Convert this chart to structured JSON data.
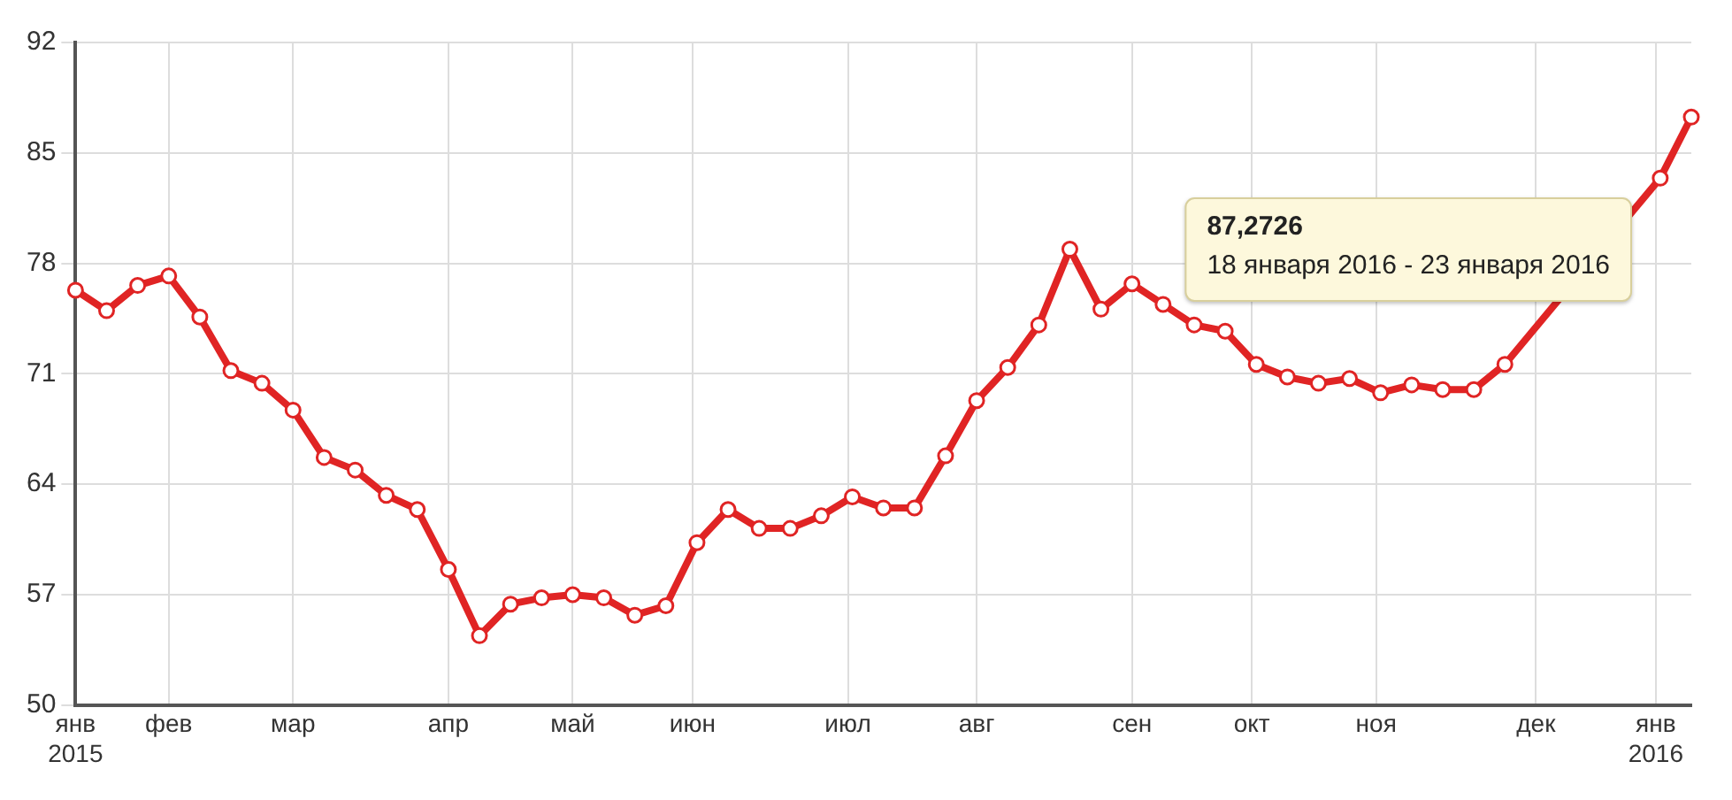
{
  "chart_data": {
    "type": "line",
    "x": [
      "2015-01-19",
      "2015-01-26",
      "2015-02-02",
      "2015-02-09",
      "2015-02-16",
      "2015-02-23",
      "2015-03-02",
      "2015-03-09",
      "2015-03-16",
      "2015-03-23",
      "2015-03-30",
      "2015-04-06",
      "2015-04-13",
      "2015-04-20",
      "2015-04-27",
      "2015-05-04",
      "2015-05-11",
      "2015-05-18",
      "2015-05-25",
      "2015-06-01",
      "2015-06-08",
      "2015-06-15",
      "2015-06-22",
      "2015-06-29",
      "2015-07-06",
      "2015-07-13",
      "2015-07-20",
      "2015-07-27",
      "2015-08-03",
      "2015-08-10",
      "2015-08-17",
      "2015-08-24",
      "2015-08-31",
      "2015-09-07",
      "2015-09-14",
      "2015-09-21",
      "2015-09-28",
      "2015-10-05",
      "2015-10-12",
      "2015-10-19",
      "2015-10-26",
      "2015-11-02",
      "2015-11-09",
      "2015-11-16",
      "2015-11-23",
      "2015-11-30",
      "2015-12-07",
      "2015-12-14",
      "2015-12-21",
      "2015-12-28",
      "2016-01-04",
      "2016-01-11",
      "2016-01-18"
    ],
    "series": [
      {
        "color": "#e02424",
        "values": [
          76.3,
          75.0,
          76.6,
          77.2,
          74.6,
          71.2,
          70.4,
          68.7,
          65.7,
          64.9,
          63.3,
          62.4,
          58.6,
          54.4,
          56.4,
          56.8,
          57.0,
          56.8,
          55.7,
          56.3,
          60.3,
          62.4,
          61.2,
          61.2,
          62.0,
          63.2,
          62.5,
          62.5,
          65.8,
          69.3,
          71.4,
          74.1,
          78.9,
          75.1,
          76.7,
          75.4,
          74.1,
          73.7,
          71.6,
          70.8,
          70.4,
          70.7,
          69.8,
          70.3,
          70.0,
          70.0,
          71.6,
          null,
          null,
          null,
          null,
          83.4,
          87.2726
        ]
      }
    ],
    "xlim": [
      "2015-01-19",
      "2016-01-18"
    ],
    "xticks": [
      {
        "value": "2015-01-19",
        "label": "янв\n2015"
      },
      {
        "value": "2015-02-09",
        "label": "фев"
      },
      {
        "value": "2015-03-09",
        "label": "мар"
      },
      {
        "value": "2015-04-13",
        "label": "апр"
      },
      {
        "value": "2015-05-11",
        "label": "май"
      },
      {
        "value": "2015-06-07",
        "label": "июн"
      },
      {
        "value": "2015-07-12",
        "label": "июл"
      },
      {
        "value": "2015-08-10",
        "label": "авг"
      },
      {
        "value": "2015-09-14",
        "label": "сен"
      },
      {
        "value": "2015-10-11",
        "label": "окт"
      },
      {
        "value": "2015-11-08",
        "label": "ноя"
      },
      {
        "value": "2015-12-14",
        "label": "дек"
      },
      {
        "value": "2016-01-10",
        "label": "янв\n2016"
      }
    ],
    "ylim": [
      50,
      92
    ],
    "yticks": [
      50,
      57,
      64,
      71,
      78,
      85,
      92
    ],
    "grid": true,
    "marker": "circle",
    "line_style": "solid",
    "annotations": [
      "87,2726\n18 января 2016 - 23 января 2016"
    ]
  }
}
